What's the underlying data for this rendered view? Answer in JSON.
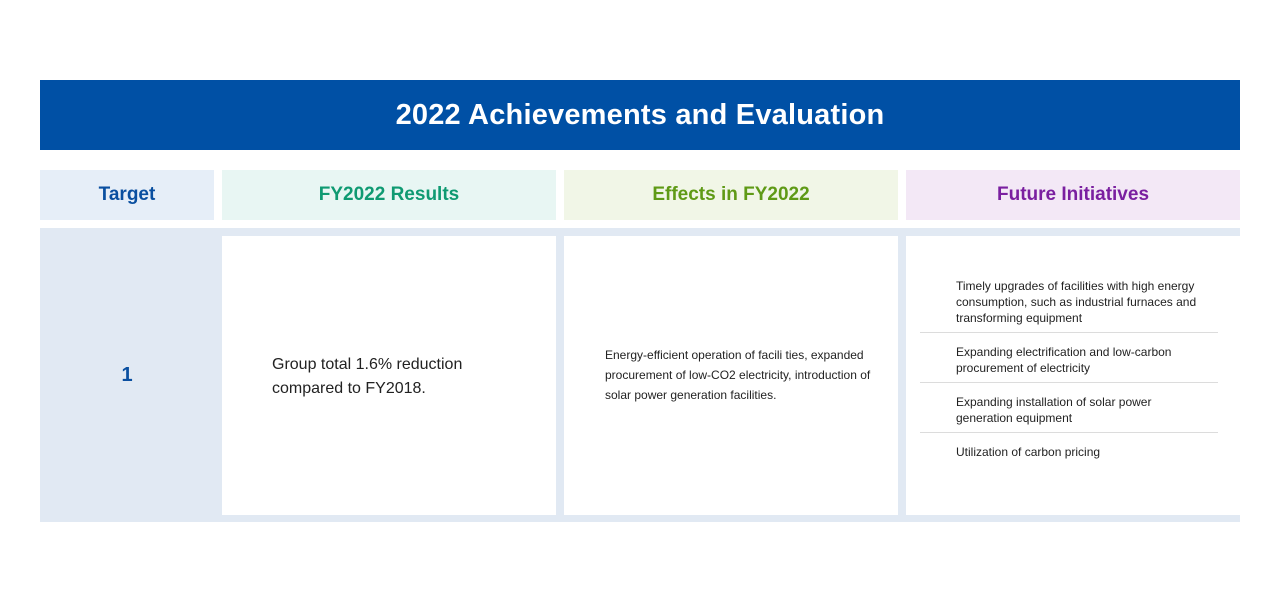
{
  "title": "2022 Achievements and Evaluation",
  "headers": {
    "target": "Target",
    "results": "FY2022 Results",
    "effects": "Effects in FY2022",
    "future": "Future Initiatives"
  },
  "row": {
    "target": "1",
    "results": "Group total 1.6% reduction compared to FY2018.",
    "effects": "Energy-efficient operation of facili ties, expanded procurement of low-CO2 electricity, introduction of solar power generation facilities.",
    "future": [
      "Timely upgrades of facilities with high energy consumption, such as industrial furnaces and transforming equipment",
      "Expanding electrification and low-carbon procurement of electricity",
      "Expanding installation of solar power generation equipment",
      "Utilization of carbon pricing"
    ]
  },
  "colors": {
    "title_bg": "#0050a5",
    "target": "#0a4fa0",
    "results": "#0f9a72",
    "effects": "#5f9a16",
    "future": "#7a1fa0"
  }
}
